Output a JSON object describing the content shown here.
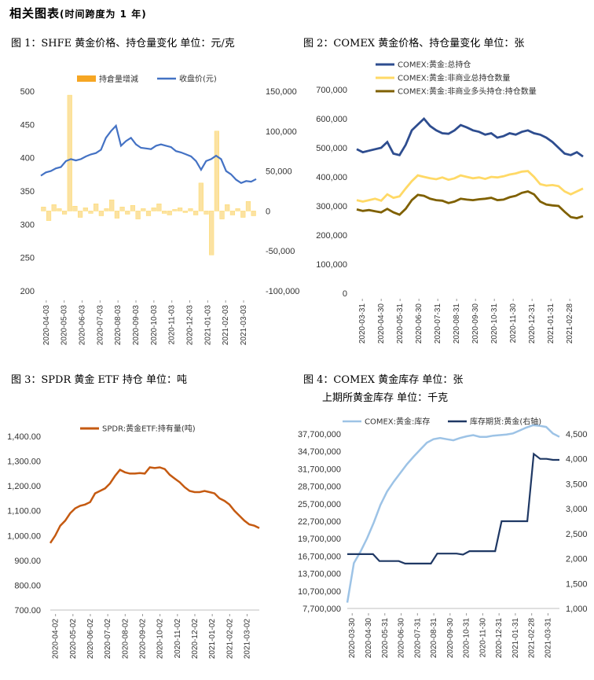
{
  "page_title": {
    "main": "相关图表",
    "sub": "(时间跨度为 1 年)"
  },
  "headings": {
    "c1": "图 1：SHFE 黄金价格、持仓量变化   单位：元/克",
    "c2": "图 2：COMEX 黄金价格、持仓量变化   单位：张",
    "c3": "图 3：SPDR 黄金 ETF 持仓   单位：吨",
    "c4a": "图 4：COMEX 黄金库存   单位：张",
    "c4b": "上期所黄金库存   单位：千克"
  },
  "colors": {
    "orange_bar": "#f6a623",
    "orange_fill": "#fbe2a2",
    "dark_blue": "#2e4d8f",
    "mid_blue": "#4472c4",
    "light_yellow": "#ffd966",
    "olive": "#7f6000",
    "brown_orange": "#c55a11",
    "light_blue": "#9dc3e6",
    "navy": "#1f3864"
  },
  "chart_data": [
    {
      "id": "c1",
      "type": "line",
      "x_ticks": [
        "2020-04-03",
        "2020-05-03",
        "2020-06-03",
        "2020-07-03",
        "2020-08-03",
        "2020-09-03",
        "2020-10-03",
        "2020-11-03",
        "2020-12-03",
        "2021-01-03",
        "2021-02-03",
        "2021-03-03"
      ],
      "ylim_left": [
        200,
        500
      ],
      "yticks_left": [
        200,
        250,
        300,
        350,
        400,
        450,
        500
      ],
      "ylim_right": [
        -100000,
        150000
      ],
      "yticks_right": [
        -100000,
        -50000,
        0,
        50000,
        100000,
        150000
      ],
      "legend_position": "top",
      "series": [
        {
          "name": "持倉量增減",
          "kind": "bar",
          "axis": "right",
          "values": [
            5000,
            -12000,
            8000,
            3000,
            -4000,
            145000,
            6000,
            -8000,
            4000,
            -3000,
            9000,
            -6000,
            3000,
            14000,
            -9000,
            5000,
            -4000,
            7000,
            -10000,
            3000,
            -6000,
            4000,
            9000,
            -3000,
            -5000,
            2000,
            4000,
            -2000,
            3000,
            -5000,
            35000,
            -4000,
            -55000,
            100000,
            -10000,
            8000,
            -5000,
            3000,
            -8000,
            12000,
            -6000
          ]
        },
        {
          "name": "收盘价(元)",
          "kind": "line",
          "axis": "left",
          "values": [
            373,
            378,
            380,
            384,
            386,
            395,
            398,
            396,
            398,
            402,
            405,
            407,
            412,
            430,
            440,
            448,
            418,
            425,
            430,
            420,
            415,
            414,
            413,
            418,
            420,
            418,
            416,
            410,
            408,
            405,
            402,
            395,
            382,
            395,
            398,
            403,
            398,
            380,
            375,
            367,
            362,
            365,
            364,
            368
          ]
        }
      ]
    },
    {
      "id": "c2",
      "type": "line",
      "x_ticks": [
        "2020-03-31",
        "2020-04-30",
        "2020-05-31",
        "2020-06-30",
        "2020-07-31",
        "2020-08-31",
        "2020-09-30",
        "2020-10-31",
        "2020-11-30",
        "2020-12-31",
        "2021-01-31",
        "2021-02-28"
      ],
      "ylim": [
        0,
        700000
      ],
      "yticks": [
        0,
        100000,
        200000,
        300000,
        400000,
        500000,
        600000,
        700000
      ],
      "legend_position": "top",
      "series": [
        {
          "name": "COMEX:黄金:总持仓",
          "values": [
            495000,
            485000,
            490000,
            495000,
            500000,
            520000,
            480000,
            475000,
            510000,
            560000,
            580000,
            600000,
            575000,
            560000,
            550000,
            548000,
            560000,
            578000,
            570000,
            560000,
            555000,
            545000,
            550000,
            535000,
            540000,
            550000,
            545000,
            555000,
            560000,
            550000,
            545000,
            535000,
            520000,
            500000,
            480000,
            475000,
            485000,
            470000
          ]
        },
        {
          "name": "COMEX:黄金:非商业总持仓数量",
          "values": [
            320000,
            315000,
            320000,
            325000,
            318000,
            340000,
            328000,
            333000,
            360000,
            385000,
            405000,
            400000,
            395000,
            392000,
            398000,
            390000,
            395000,
            405000,
            400000,
            395000,
            398000,
            393000,
            400000,
            398000,
            402000,
            408000,
            412000,
            418000,
            420000,
            400000,
            375000,
            370000,
            372000,
            368000,
            350000,
            340000,
            350000,
            360000
          ]
        },
        {
          "name": "COMEX:黄金:非商业多头持仓:持仓数量",
          "values": [
            288000,
            283000,
            286000,
            282000,
            278000,
            290000,
            278000,
            270000,
            290000,
            320000,
            338000,
            335000,
            325000,
            320000,
            318000,
            310000,
            315000,
            325000,
            322000,
            320000,
            323000,
            325000,
            328000,
            320000,
            322000,
            330000,
            335000,
            345000,
            350000,
            340000,
            315000,
            305000,
            302000,
            300000,
            280000,
            262000,
            258000,
            265000
          ]
        }
      ]
    },
    {
      "id": "c3",
      "type": "line",
      "x_ticks": [
        "2020-04-02",
        "2020-05-02",
        "2020-06-02",
        "2020-07-02",
        "2020-08-02",
        "2020-09-02",
        "2020-10-02",
        "2020-11-02",
        "2020-12-02",
        "2021-01-02",
        "2021-02-02",
        "2021-03-02"
      ],
      "ylim": [
        700,
        1400
      ],
      "yticks": [
        700,
        800,
        900,
        1000,
        1100,
        1200,
        1300,
        1400
      ],
      "legend_position": "top",
      "series": [
        {
          "name": "SPDR:黄金ETF:持有量(吨)",
          "values": [
            970,
            1000,
            1040,
            1060,
            1090,
            1110,
            1120,
            1125,
            1135,
            1170,
            1180,
            1190,
            1210,
            1240,
            1265,
            1255,
            1250,
            1250,
            1252,
            1250,
            1275,
            1272,
            1275,
            1268,
            1245,
            1230,
            1215,
            1195,
            1180,
            1175,
            1175,
            1180,
            1175,
            1170,
            1150,
            1140,
            1125,
            1100,
            1080,
            1060,
            1045,
            1040,
            1030
          ]
        }
      ]
    },
    {
      "id": "c4",
      "type": "line",
      "x_ticks": [
        "2020-03-30",
        "2020-04-30",
        "2020-05-31",
        "2020-06-30",
        "2020-07-31",
        "2020-08-31",
        "2020-09-30",
        "2020-10-31",
        "2020-11-30",
        "2020-12-31",
        "2021-01-31",
        "2021-02-28",
        "2021-03-31"
      ],
      "ylim_left": [
        7700000,
        37700000
      ],
      "yticks_left": [
        7700000,
        10700000,
        13700000,
        16700000,
        19700000,
        22700000,
        25700000,
        28700000,
        31700000,
        34700000,
        37700000
      ],
      "ylim_right": [
        1000,
        4500
      ],
      "yticks_right": [
        1000,
        1500,
        2000,
        2500,
        3000,
        3500,
        4000,
        4500
      ],
      "legend_position": "top",
      "series": [
        {
          "name": "COMEX:黄金:库存",
          "axis": "left",
          "values": [
            8700000,
            15500000,
            17500000,
            19800000,
            22500000,
            25500000,
            27800000,
            29500000,
            31000000,
            32500000,
            33800000,
            35000000,
            36200000,
            36800000,
            37000000,
            36800000,
            36600000,
            37000000,
            37300000,
            37500000,
            37200000,
            37200000,
            37400000,
            37500000,
            37600000,
            37800000,
            38300000,
            38800000,
            39200000,
            39100000,
            38900000,
            37800000,
            37200000
          ]
        },
        {
          "name": "库存期货:黄金(右轴)",
          "axis": "right",
          "values": [
            2090,
            2090,
            2090,
            2090,
            2090,
            1950,
            1950,
            1950,
            1950,
            1900,
            1900,
            1900,
            1900,
            1900,
            2100,
            2100,
            2100,
            2100,
            2080,
            2150,
            2150,
            2150,
            2150,
            2150,
            2750,
            2750,
            2750,
            2750,
            2750,
            4100,
            4000,
            4000,
            3980,
            3980
          ]
        }
      ]
    }
  ]
}
